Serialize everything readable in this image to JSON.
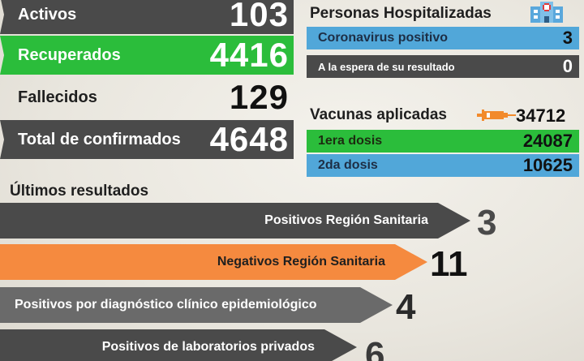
{
  "stats": {
    "activos": {
      "label": "Activos",
      "value": "103"
    },
    "recuperados": {
      "label": "Recuperados",
      "value": "4416"
    },
    "fallecidos": {
      "label": "Fallecidos",
      "value": "129"
    },
    "confirmados": {
      "label": "Total de confirmados",
      "value": "4648"
    }
  },
  "hospitalizadas": {
    "title": "Personas Hospitalizadas",
    "icon": "hospital-icon",
    "positivo": {
      "label": "Coronavirus positivo",
      "value": "3"
    },
    "espera": {
      "label": "A la espera de su resultado",
      "value": "0"
    }
  },
  "vacunas": {
    "title": "Vacunas aplicadas",
    "icon": "syringe-icon",
    "total": "34712",
    "primera": {
      "label": "1era dosis",
      "value": "24087"
    },
    "segunda": {
      "label": "2da dosis",
      "value": "10625"
    }
  },
  "resultados": {
    "title": "Últimos resultados",
    "items": [
      {
        "label": "Positivos Región Sanitaria",
        "value": "3",
        "color": "#4a4a4a"
      },
      {
        "label": "Negativos Región Sanitaria",
        "value": "11",
        "color": "#f58a3f"
      },
      {
        "label": "Positivos por diagnóstico clínico epidemiológico",
        "value": "4",
        "color": "#6a6a6a"
      },
      {
        "label": "Positivos de laboratorios privados",
        "value": "6",
        "color": "#4a4a4a"
      }
    ]
  },
  "colors": {
    "green": "#2bbd3b",
    "blue": "#51a7d9",
    "dark": "#4a4a4a",
    "orange": "#f58a3f"
  }
}
